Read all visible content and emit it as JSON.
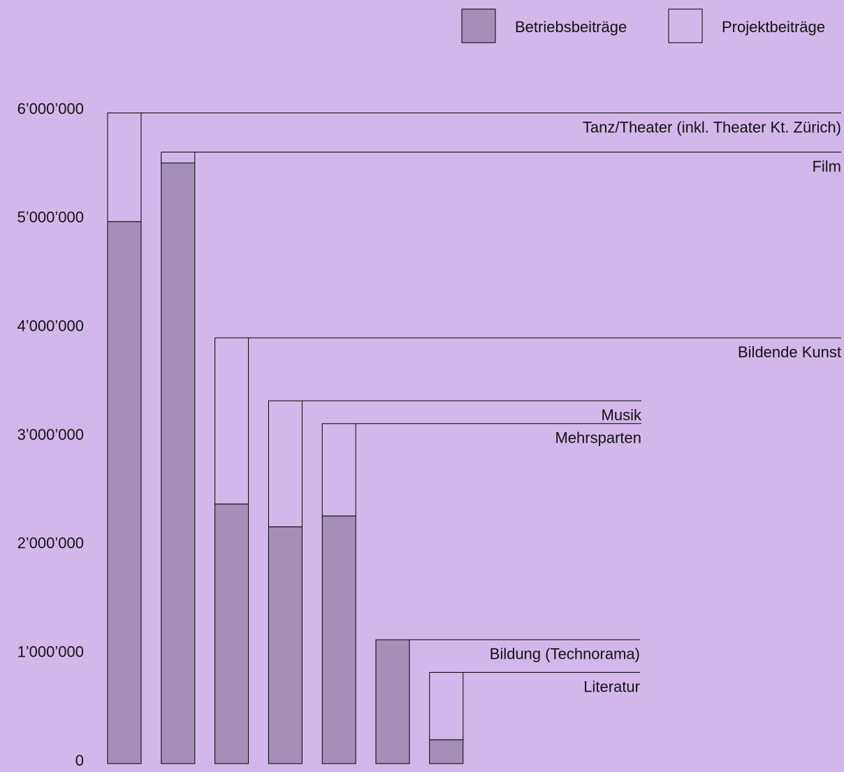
{
  "chart_data": {
    "type": "stacked_bar",
    "categories": [
      "Tanz/Theater (inkl. Theater Kt. Zürich)",
      "Film",
      "Bildende Kunst",
      "Musik",
      "Mehrsparten",
      "Bildung (Technorama)",
      "Literatur"
    ],
    "series": [
      {
        "name": "Betriebsbeiträge",
        "color": "#a38fb8",
        "values": [
          4990000,
          5530000,
          2390000,
          2180000,
          2280000,
          1140000,
          220000
        ]
      },
      {
        "name": "Projektbeiträge",
        "color": "#d2b8ea",
        "values": [
          1000000,
          100000,
          1530000,
          1160000,
          850000,
          0,
          620000
        ]
      }
    ],
    "ylim": [
      0,
      6000000
    ],
    "yticks": [
      0,
      {
        "value": 1000000,
        "label": "1’000’000"
      },
      {
        "value": 2000000,
        "label": "2’000’000"
      },
      {
        "value": 3000000,
        "label": "3’000’000"
      },
      {
        "value": 4000000,
        "label": "4’000’000"
      },
      {
        "value": 5000000,
        "label": "5’000’000"
      },
      {
        "value": 6000000,
        "label": "6’000’000"
      }
    ],
    "grid": false,
    "legend": "top-right"
  }
}
